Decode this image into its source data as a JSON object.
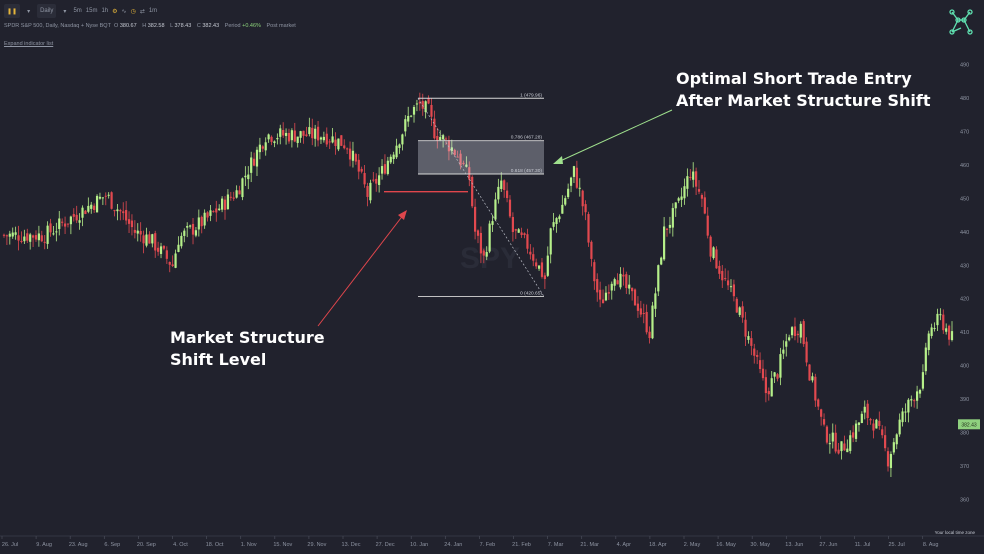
{
  "toolbar": {
    "interval": "Daily",
    "intervals": [
      "5m",
      "15m",
      "1h"
    ],
    "btn_label": "1m"
  },
  "quote": {
    "symbol": "SPDR S&P 500, Daily, Nasdaq + Nyse BQT",
    "open_label": "O",
    "open": "380.67",
    "high_label": "H",
    "high": "382.58",
    "low_label": "L",
    "low": "378.43",
    "close_label": "C",
    "close": "382.43",
    "period_label": "Period",
    "period": "+0.46%",
    "extra": "Post market"
  },
  "expand_label": "Expand indicator list",
  "annotations": {
    "top_line1": "Optimal Short Trade Entry",
    "top_line2": "After Market Structure Shift",
    "bottom_line1": "Market Structure",
    "bottom_line2": "Shift Level"
  },
  "colors": {
    "background": "#21222d",
    "up": "#b6f08a",
    "down": "#e2494f",
    "arrow_green": "#9fe08d",
    "arrow_red": "#e0464c",
    "fib": "#d8d8d8",
    "price_tag": "#8fd17f"
  },
  "chart_data": {
    "type": "candlestick",
    "y_axis": {
      "ticks": [
        490,
        480,
        470,
        460,
        450,
        440,
        430,
        420,
        410,
        400,
        390,
        380,
        370,
        360
      ],
      "ylim": [
        355,
        492
      ],
      "current_price": "382.43"
    },
    "x_axis": {
      "tick_labels": [
        "26. Jul",
        "9. Aug",
        "23. Aug",
        "6. Sep",
        "20. Sep",
        "4. Oct",
        "18. Oct",
        "1. Nov",
        "15. Nov",
        "29. Nov",
        "13. Dec",
        "27. Dec",
        "10. Jan",
        "24. Jan",
        "7. Feb",
        "21. Feb",
        "7. Mar",
        "21. Mar",
        "4. Apr",
        "18. Apr",
        "2. May",
        "16. May",
        "30. May",
        "13. Jun",
        "27. Jun",
        "11. Jul",
        "25. Jul",
        "8. Aug"
      ],
      "note": "Your local time zone"
    },
    "price_path": [
      [
        0,
        439
      ],
      [
        14,
        439
      ],
      [
        28,
        447
      ],
      [
        35,
        451
      ],
      [
        40,
        446
      ],
      [
        45,
        440
      ],
      [
        50,
        438
      ],
      [
        55,
        433
      ],
      [
        58,
        430
      ],
      [
        60,
        438
      ],
      [
        70,
        444
      ],
      [
        80,
        452
      ],
      [
        90,
        469
      ],
      [
        100,
        469
      ],
      [
        110,
        469
      ],
      [
        118,
        466
      ],
      [
        122,
        458
      ],
      [
        125,
        451
      ],
      [
        130,
        458
      ],
      [
        137,
        470
      ],
      [
        140,
        476
      ],
      [
        143,
        478
      ],
      [
        146,
        476
      ],
      [
        148,
        470
      ],
      [
        152,
        467
      ],
      [
        156,
        463
      ],
      [
        160,
        456
      ],
      [
        162,
        440
      ],
      [
        165,
        432
      ],
      [
        168,
        445
      ],
      [
        171,
        455
      ],
      [
        173,
        448
      ],
      [
        175,
        440
      ],
      [
        180,
        436
      ],
      [
        186,
        426
      ],
      [
        188,
        440
      ],
      [
        192,
        448
      ],
      [
        196,
        458
      ],
      [
        198,
        452
      ],
      [
        200,
        444
      ],
      [
        202,
        430
      ],
      [
        205,
        418
      ],
      [
        210,
        428
      ],
      [
        214,
        423
      ],
      [
        218,
        418
      ],
      [
        222,
        410
      ],
      [
        227,
        440
      ],
      [
        232,
        448
      ],
      [
        236,
        458
      ],
      [
        240,
        450
      ],
      [
        243,
        435
      ],
      [
        248,
        425
      ],
      [
        252,
        418
      ],
      [
        258,
        403
      ],
      [
        262,
        392
      ],
      [
        266,
        398
      ],
      [
        270,
        410
      ],
      [
        274,
        412
      ],
      [
        277,
        398
      ],
      [
        282,
        380
      ],
      [
        288,
        375
      ],
      [
        292,
        380
      ],
      [
        296,
        386
      ],
      [
        300,
        382
      ],
      [
        304,
        372
      ],
      [
        308,
        383
      ],
      [
        312,
        390
      ],
      [
        316,
        396
      ],
      [
        318,
        410
      ],
      [
        322,
        414
      ],
      [
        326,
        408
      ]
    ],
    "price_path_x_unit": "trading days",
    "fibonacci": [
      {
        "label": "1 (479.96)",
        "value": 479.96
      },
      {
        "label": "0.786 (467.28)",
        "value": 467.28
      },
      {
        "label": "0.618 (457.30)",
        "value": 457.3
      },
      {
        "label": "0 (420.65)",
        "value": 420.65
      }
    ],
    "structure_shift_level": 452,
    "watermark": "SPY"
  }
}
